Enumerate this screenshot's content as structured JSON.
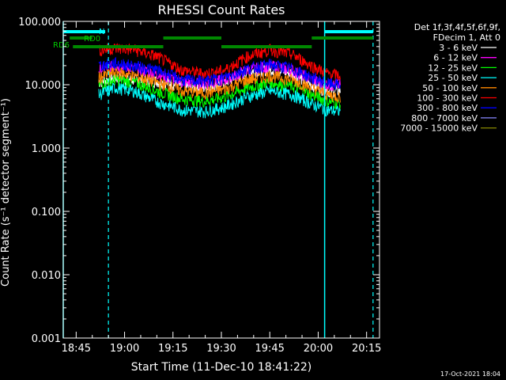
{
  "chart_data": {
    "type": "line",
    "title": "RHESSI Count Rates",
    "xlabel": "Start Time (11-Dec-10 18:41:22)",
    "ylabel": "Count Rate (s⁻¹ detector segment⁻¹)",
    "yscale": "log",
    "ylim": [
      0.001,
      100
    ],
    "xlim": [
      "18:41",
      "20:19"
    ],
    "x_ticks": [
      "18:45",
      "19:00",
      "19:15",
      "19:30",
      "19:45",
      "20:00",
      "20:15"
    ],
    "y_ticks": [
      "0.001",
      "0.010",
      "0.100",
      "1.000",
      "10.000",
      "100.000"
    ],
    "legend_header": [
      "Det 1f,3f,4f,5f,6f,9f,",
      "FDecim 1, Att 0"
    ],
    "legend_position": "right",
    "series": [
      {
        "name": "3 - 6 keV",
        "color": "#ffffff",
        "x": [
          "18:52",
          "18:57",
          "19:03",
          "19:10",
          "19:18",
          "19:25",
          "19:31",
          "19:38",
          "19:45",
          "19:52",
          "19:58",
          "20:03",
          "20:07"
        ],
        "values": [
          11,
          13,
          12,
          11.5,
          9.5,
          9,
          11,
          16,
          18,
          15,
          10,
          8,
          8
        ]
      },
      {
        "name": "6 - 12 keV",
        "color": "#ff00ff",
        "x": [
          "18:52",
          "18:57",
          "19:03",
          "19:10",
          "19:18",
          "19:25",
          "19:31",
          "19:38",
          "19:45",
          "19:52",
          "19:58",
          "20:03",
          "20:07"
        ],
        "values": [
          17,
          20,
          18,
          15,
          11,
          10.5,
          12,
          17,
          20,
          17,
          12,
          10,
          10
        ]
      },
      {
        "name": "12 - 25 keV",
        "color": "#00ff00",
        "x": [
          "18:52",
          "18:57",
          "19:03",
          "19:10",
          "19:18",
          "19:25",
          "19:31",
          "19:38",
          "19:45",
          "19:52",
          "19:58",
          "20:03",
          "20:07"
        ],
        "values": [
          10,
          12,
          11,
          8,
          6,
          5.5,
          6.5,
          9,
          11,
          9.5,
          7,
          5.5,
          5
        ]
      },
      {
        "name": "25 - 50 keV",
        "color": "#00ffff",
        "x": [
          "18:52",
          "18:57",
          "19:03",
          "19:10",
          "19:18",
          "19:25",
          "19:31",
          "19:38",
          "19:45",
          "19:52",
          "19:58",
          "20:03",
          "20:07"
        ],
        "values": [
          7,
          9,
          8,
          5.5,
          4,
          3.8,
          4.5,
          6.5,
          8,
          7,
          5,
          4,
          3.8
        ]
      },
      {
        "name": "50 - 100 keV",
        "color": "#ff8800",
        "x": [
          "18:52",
          "18:57",
          "19:03",
          "19:10",
          "19:18",
          "19:25",
          "19:31",
          "19:38",
          "19:45",
          "19:52",
          "19:58",
          "20:03",
          "20:07"
        ],
        "values": [
          13,
          16,
          14,
          11,
          8,
          7.5,
          8.5,
          12,
          14,
          12,
          9,
          7,
          6.5
        ]
      },
      {
        "name": "100 - 300 keV",
        "color": "#ff0000",
        "x": [
          "18:52",
          "18:57",
          "19:03",
          "19:10",
          "19:18",
          "19:25",
          "19:31",
          "19:38",
          "19:45",
          "19:52",
          "19:58",
          "20:03",
          "20:07"
        ],
        "values": [
          35,
          38,
          36,
          28,
          17,
          15,
          17,
          28,
          36,
          30,
          20,
          15,
          14
        ]
      },
      {
        "name": "300 - 800 keV",
        "color": "#0000ff",
        "x": [
          "18:52",
          "18:57",
          "19:03",
          "19:10",
          "19:18",
          "19:25",
          "19:31",
          "19:38",
          "19:45",
          "19:52",
          "19:58",
          "20:03",
          "20:07"
        ],
        "values": [
          20,
          22,
          20,
          17,
          12,
          11.5,
          13,
          18,
          21,
          18,
          13,
          10.5,
          10
        ]
      },
      {
        "name": "800 - 7000 keV",
        "color": "#8888ff",
        "values": []
      },
      {
        "name": "7000 - 15000 keV",
        "color": "#888800",
        "values": []
      }
    ],
    "annotations": [
      "N",
      "RD0",
      "RD6"
    ],
    "dashed_times": [
      "18:55",
      "20:17"
    ],
    "solid_times": [
      "18:41",
      "20:02"
    ],
    "night_bars": [
      [
        "18:41",
        "18:54"
      ],
      [
        "20:02",
        "20:17"
      ]
    ],
    "rd0_bar": [
      "18:43",
      "18:50"
    ],
    "rd6_bars": [
      [
        "18:44",
        "19:12"
      ],
      [
        "19:12",
        "19:30"
      ],
      [
        "19:30",
        "19:58"
      ],
      [
        "19:58",
        "20:17"
      ]
    ]
  },
  "footer": {
    "timestamp": "17-Oct-2021 18:04"
  }
}
